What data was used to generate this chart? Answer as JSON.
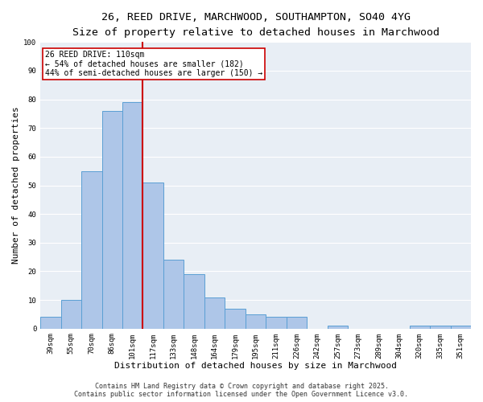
{
  "title_line1": "26, REED DRIVE, MARCHWOOD, SOUTHAMPTON, SO40 4YG",
  "title_line2": "Size of property relative to detached houses in Marchwood",
  "xlabel": "Distribution of detached houses by size in Marchwood",
  "ylabel": "Number of detached properties",
  "categories": [
    "39sqm",
    "55sqm",
    "70sqm",
    "86sqm",
    "101sqm",
    "117sqm",
    "133sqm",
    "148sqm",
    "164sqm",
    "179sqm",
    "195sqm",
    "211sqm",
    "226sqm",
    "242sqm",
    "257sqm",
    "273sqm",
    "289sqm",
    "304sqm",
    "320sqm",
    "335sqm",
    "351sqm"
  ],
  "values": [
    4,
    10,
    55,
    76,
    79,
    51,
    24,
    19,
    11,
    7,
    5,
    4,
    4,
    0,
    1,
    0,
    0,
    0,
    1,
    1,
    1
  ],
  "bar_color": "#aec6e8",
  "bar_edge_color": "#5a9fd4",
  "vline_color": "#cc0000",
  "annotation_title": "26 REED DRIVE: 110sqm",
  "annotation_line2": "← 54% of detached houses are smaller (182)",
  "annotation_line3": "44% of semi-detached houses are larger (150) →",
  "annotation_box_color": "#cc0000",
  "annotation_bg": "#ffffff",
  "ylim": [
    0,
    100
  ],
  "yticks": [
    0,
    10,
    20,
    30,
    40,
    50,
    60,
    70,
    80,
    90,
    100
  ],
  "background_color": "#e8eef5",
  "grid_color": "#ffffff",
  "fig_background": "#ffffff",
  "footer_line1": "Contains HM Land Registry data © Crown copyright and database right 2025.",
  "footer_line2": "Contains public sector information licensed under the Open Government Licence v3.0.",
  "title_fontsize": 9.5,
  "subtitle_fontsize": 8.5,
  "axis_label_fontsize": 8,
  "tick_fontsize": 6.5,
  "annotation_fontsize": 7,
  "footer_fontsize": 6
}
